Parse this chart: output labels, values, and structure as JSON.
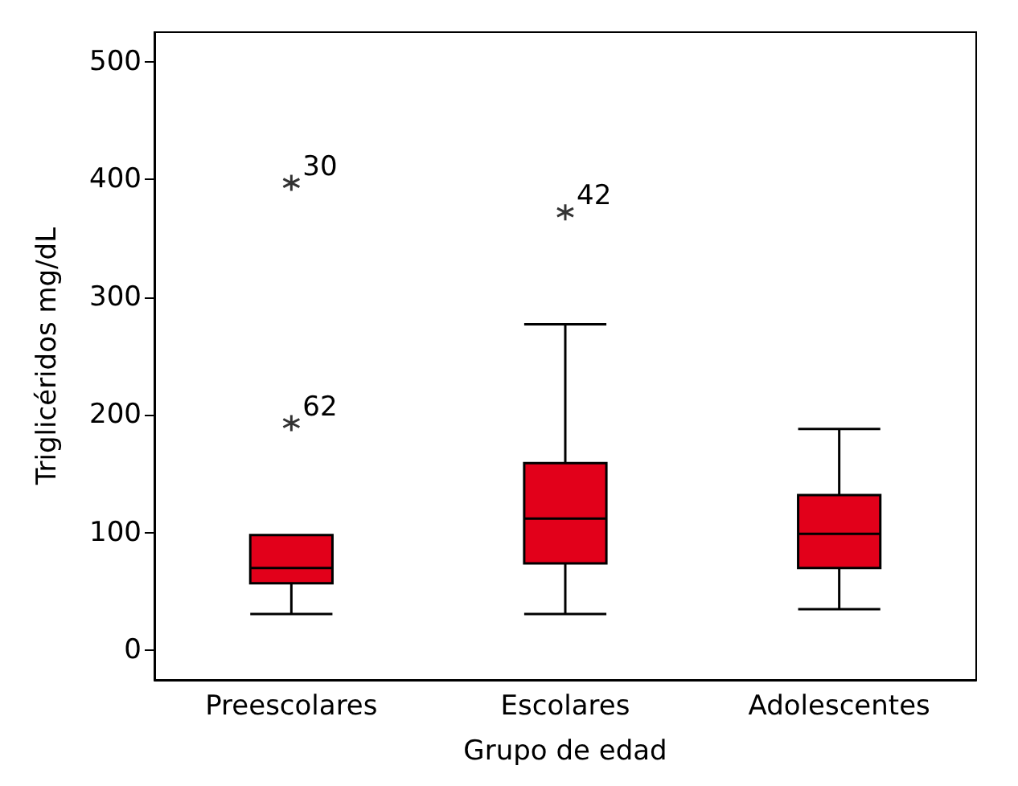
{
  "chart_data": {
    "type": "box",
    "xlabel": "Grupo de edad",
    "ylabel": "Triglicéridos mg/dL",
    "categories": [
      "Preescolares",
      "Escolares",
      "Adolescentes"
    ],
    "color": "#e2001a",
    "boxes": [
      {
        "low": 31,
        "q1": 57,
        "median": 70,
        "q3": 98,
        "high": 98,
        "outliers": [
          397,
          193
        ]
      },
      {
        "low": 31,
        "q1": 74,
        "median": 112,
        "q3": 159,
        "high": 277,
        "outliers": [
          372
        ]
      },
      {
        "low": 35,
        "q1": 70,
        "median": 99,
        "q3": 132,
        "high": 188
      }
    ],
    "annotations": [
      "30",
      "62",
      "42"
    ],
    "ylim": [
      -25,
      525
    ],
    "yticks": [
      0,
      100,
      200,
      300,
      400,
      500
    ],
    "grid": false
  }
}
